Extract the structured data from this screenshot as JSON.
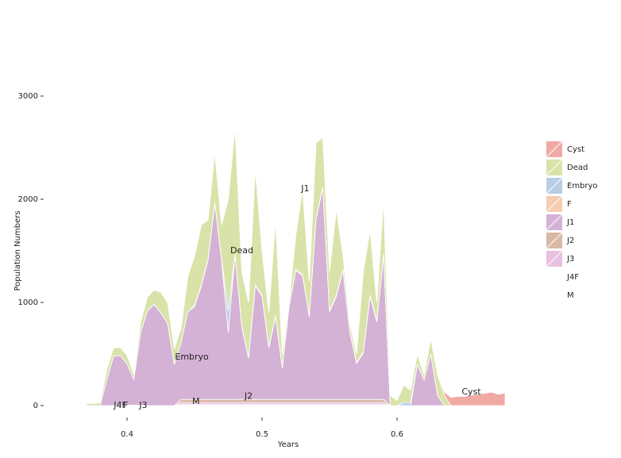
{
  "chart_data": {
    "type": "stacked_area",
    "x": [
      0.37,
      0.375,
      0.38,
      0.385,
      0.39,
      0.395,
      0.4,
      0.405,
      0.41,
      0.415,
      0.42,
      0.425,
      0.43,
      0.435,
      0.44,
      0.445,
      0.45,
      0.455,
      0.46,
      0.465,
      0.47,
      0.475,
      0.48,
      0.485,
      0.49,
      0.495,
      0.5,
      0.505,
      0.51,
      0.515,
      0.52,
      0.525,
      0.53,
      0.535,
      0.54,
      0.545,
      0.55,
      0.555,
      0.56,
      0.565,
      0.57,
      0.575,
      0.58,
      0.585,
      0.59,
      0.595,
      0.6,
      0.605,
      0.61,
      0.615,
      0.62,
      0.625,
      0.63,
      0.635,
      0.64,
      0.645,
      0.65,
      0.655,
      0.66,
      0.665,
      0.67,
      0.675,
      0.68
    ],
    "series": [
      {
        "name": "Cyst",
        "color": "#f1a9a3",
        "values": [
          0,
          0,
          0,
          0,
          0,
          0,
          0,
          0,
          0,
          0,
          0,
          0,
          0,
          0,
          0,
          0,
          0,
          0,
          0,
          0,
          0,
          0,
          0,
          0,
          0,
          0,
          0,
          0,
          0,
          0,
          0,
          0,
          0,
          0,
          0,
          0,
          0,
          0,
          0,
          0,
          0,
          0,
          0,
          0,
          0,
          0,
          0,
          0,
          0,
          0,
          0,
          0,
          0,
          30,
          80,
          90,
          90,
          100,
          110,
          120,
          130,
          110,
          120
        ]
      },
      {
        "name": "Dead",
        "color": "#d9e3a9",
        "values": [
          20,
          20,
          30,
          100,
          80,
          80,
          80,
          50,
          100,
          130,
          140,
          200,
          200,
          150,
          140,
          340,
          480,
          580,
          380,
          480,
          330,
          1080,
          1230,
          530,
          530,
          1130,
          430,
          330,
          930,
          130,
          30,
          330,
          830,
          330,
          730,
          480,
          380,
          830,
          130,
          80,
          80,
          780,
          630,
          180,
          530,
          100,
          50,
          170,
          120,
          100,
          50,
          150,
          200,
          100,
          0,
          0,
          0,
          0,
          0,
          0,
          0,
          0,
          0
        ]
      },
      {
        "name": "Embryo",
        "color": "#b8cde6",
        "values": [
          0,
          0,
          0,
          0,
          0,
          0,
          0,
          0,
          0,
          0,
          0,
          0,
          0,
          0,
          0,
          0,
          0,
          0,
          0,
          0,
          0,
          200,
          0,
          0,
          0,
          0,
          0,
          0,
          0,
          0,
          0,
          0,
          0,
          0,
          0,
          0,
          0,
          0,
          0,
          0,
          0,
          0,
          0,
          0,
          0,
          0,
          0,
          30,
          30,
          0,
          0,
          0,
          0,
          0,
          0,
          0,
          0,
          0,
          0,
          0,
          0,
          0,
          0
        ]
      },
      {
        "name": "F",
        "color": "#f6cdb0",
        "values": [
          0,
          0,
          0,
          0,
          0,
          0,
          0,
          0,
          0,
          0,
          0,
          0,
          0,
          0,
          0,
          0,
          10,
          10,
          10,
          10,
          10,
          10,
          10,
          10,
          10,
          10,
          10,
          10,
          10,
          10,
          10,
          10,
          10,
          10,
          10,
          10,
          10,
          10,
          10,
          10,
          10,
          10,
          10,
          10,
          10,
          0,
          0,
          0,
          0,
          0,
          0,
          0,
          0,
          0,
          0,
          0,
          0,
          0,
          0,
          0,
          0,
          0,
          0
        ]
      },
      {
        "name": "J1",
        "color": "#d4b2d5",
        "values": [
          0,
          0,
          0,
          250,
          480,
          480,
          400,
          250,
          700,
          920,
          980,
          900,
          800,
          400,
          550,
          850,
          900,
          1100,
          1350,
          1900,
          1350,
          650,
          1400,
          700,
          400,
          1100,
          1000,
          500,
          800,
          300,
          900,
          1250,
          1200,
          800,
          1750,
          2050,
          850,
          1000,
          1250,
          650,
          350,
          450,
          1000,
          750,
          1400,
          0,
          0,
          0,
          0,
          400,
          250,
          500,
          100,
          0,
          0,
          0,
          0,
          0,
          0,
          0,
          0,
          0,
          0
        ]
      },
      {
        "name": "J2",
        "color": "#dab8a5",
        "values": [
          0,
          0,
          0,
          0,
          0,
          0,
          0,
          0,
          0,
          0,
          0,
          0,
          0,
          0,
          30,
          30,
          30,
          30,
          30,
          30,
          30,
          30,
          30,
          30,
          30,
          30,
          30,
          30,
          30,
          30,
          30,
          30,
          30,
          30,
          30,
          30,
          30,
          30,
          30,
          30,
          30,
          30,
          30,
          30,
          30,
          0,
          0,
          0,
          0,
          0,
          0,
          0,
          0,
          0,
          0,
          0,
          0,
          0,
          0,
          0,
          0,
          0,
          0
        ]
      },
      {
        "name": "J3",
        "color": "#e9c0e0",
        "values": [
          0,
          0,
          0,
          0,
          0,
          0,
          0,
          0,
          0,
          0,
          0,
          0,
          0,
          0,
          20,
          20,
          20,
          20,
          20,
          20,
          20,
          20,
          20,
          20,
          20,
          20,
          20,
          20,
          20,
          20,
          20,
          20,
          20,
          20,
          20,
          20,
          20,
          20,
          20,
          20,
          20,
          20,
          20,
          20,
          20,
          0,
          0,
          0,
          0,
          0,
          0,
          0,
          0,
          0,
          0,
          0,
          0,
          0,
          0,
          0,
          0,
          0,
          0
        ]
      },
      {
        "name": "J4F",
        "color": "#ffffff",
        "values": [
          0,
          0,
          0,
          0,
          0,
          5,
          5,
          5,
          5,
          0,
          0,
          0,
          0,
          0,
          0,
          0,
          0,
          0,
          0,
          0,
          0,
          0,
          0,
          0,
          0,
          0,
          0,
          0,
          0,
          0,
          0,
          0,
          0,
          0,
          0,
          0,
          0,
          0,
          0,
          0,
          0,
          0,
          0,
          0,
          0,
          0,
          0,
          0,
          0,
          0,
          0,
          0,
          0,
          0,
          0,
          0,
          0,
          0,
          0,
          0,
          0,
          0,
          0
        ]
      },
      {
        "name": "M",
        "color": "#ffffff",
        "values": [
          0,
          0,
          0,
          0,
          0,
          0,
          0,
          0,
          0,
          0,
          0,
          0,
          0,
          0,
          10,
          10,
          10,
          10,
          10,
          10,
          10,
          10,
          10,
          10,
          10,
          10,
          10,
          10,
          10,
          10,
          10,
          10,
          10,
          10,
          10,
          10,
          10,
          10,
          10,
          10,
          10,
          10,
          10,
          10,
          10,
          0,
          0,
          0,
          0,
          0,
          0,
          0,
          0,
          0,
          0,
          0,
          0,
          0,
          0,
          0,
          0,
          0,
          0
        ]
      }
    ],
    "annotations": [
      {
        "text": "J4F",
        "x": 0.395,
        "y": 0
      },
      {
        "text": "F",
        "x": 0.399,
        "y": 0
      },
      {
        "text": "J3",
        "x": 0.412,
        "y": 0
      },
      {
        "text": "M",
        "x": 0.451,
        "y": 40
      },
      {
        "text": "Embryo",
        "x": 0.448,
        "y": 470
      },
      {
        "text": "Dead",
        "x": 0.485,
        "y": 1500
      },
      {
        "text": "J2",
        "x": 0.49,
        "y": 90
      },
      {
        "text": "J1",
        "x": 0.532,
        "y": 2100
      },
      {
        "text": "Cyst",
        "x": 0.655,
        "y": 130
      }
    ],
    "xlabel": "Years",
    "ylabel": "Population Numbers",
    "xlim": [
      0.36,
      0.69
    ],
    "xticks": [
      0.4,
      0.5,
      0.6
    ],
    "ylim": [
      0,
      3000
    ],
    "yticks": [
      0,
      1000,
      2000,
      3000
    ],
    "legend": "right"
  }
}
